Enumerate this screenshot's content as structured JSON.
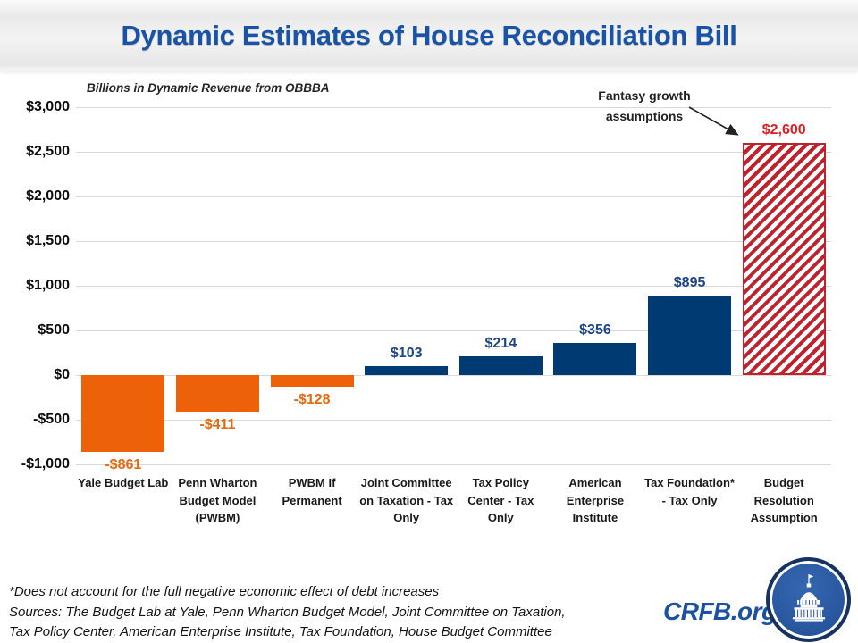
{
  "header": {
    "title": "Dynamic Estimates of House Reconciliation Bill"
  },
  "chart_data": {
    "type": "bar",
    "title": "Billions in Dynamic Revenue from OBBBA",
    "categories": [
      "Yale Budget Lab",
      "Penn Wharton Budget Model (PWBM)",
      "PWBM If Permanent",
      "Joint Committee on Taxation - Tax Only",
      "Tax Policy Center - Tax Only",
      "American Enterprise Institute",
      "Tax Foundation* - Tax Only",
      "Budget Resolution Assumption"
    ],
    "values": [
      -861,
      -411,
      -128,
      103,
      214,
      356,
      895,
      2600
    ],
    "value_labels": [
      "-$861",
      "-$411",
      "-$128",
      "$103",
      "$214",
      "$356",
      "$895",
      "$2,600"
    ],
    "bar_styles": [
      "negative",
      "negative",
      "negative",
      "positive",
      "positive",
      "positive",
      "positive",
      "hatched"
    ],
    "y_ticks": [
      3000,
      2500,
      2000,
      1500,
      1000,
      500,
      0,
      -500,
      -1000
    ],
    "y_tick_labels": [
      "$3,000",
      "$2,500",
      "$2,000",
      "$1,500",
      "$1,000",
      "$500",
      "$0",
      "-$500",
      "-$1,000"
    ],
    "ylim": [
      -1000,
      3000
    ],
    "grid": true,
    "legend": "none",
    "annotation": {
      "line1": "Fantasy growth",
      "line2": "assumptions",
      "points_to": "Budget Resolution Assumption"
    },
    "colors": {
      "negative_bar": "#ed6109",
      "positive_bar": "#003a72",
      "hatched_stripe": "#c0212c",
      "label_negative": "#e8680f",
      "label_positive": "#1c4586",
      "label_hatched": "#df1b22",
      "gridline": "#d9d9d9",
      "title_blue": "#1853a8"
    }
  },
  "footer": {
    "footnote": "*Does not account for the full negative economic effect of debt increases",
    "sources_line1": "Sources: The Budget Lab at Yale, Penn Wharton Budget Model, Joint Committee on Taxation,",
    "sources_line2": "Tax Policy Center, American Enterprise Institute, Tax Foundation, House Budget Committee",
    "logo_text": "CRFB.org"
  }
}
